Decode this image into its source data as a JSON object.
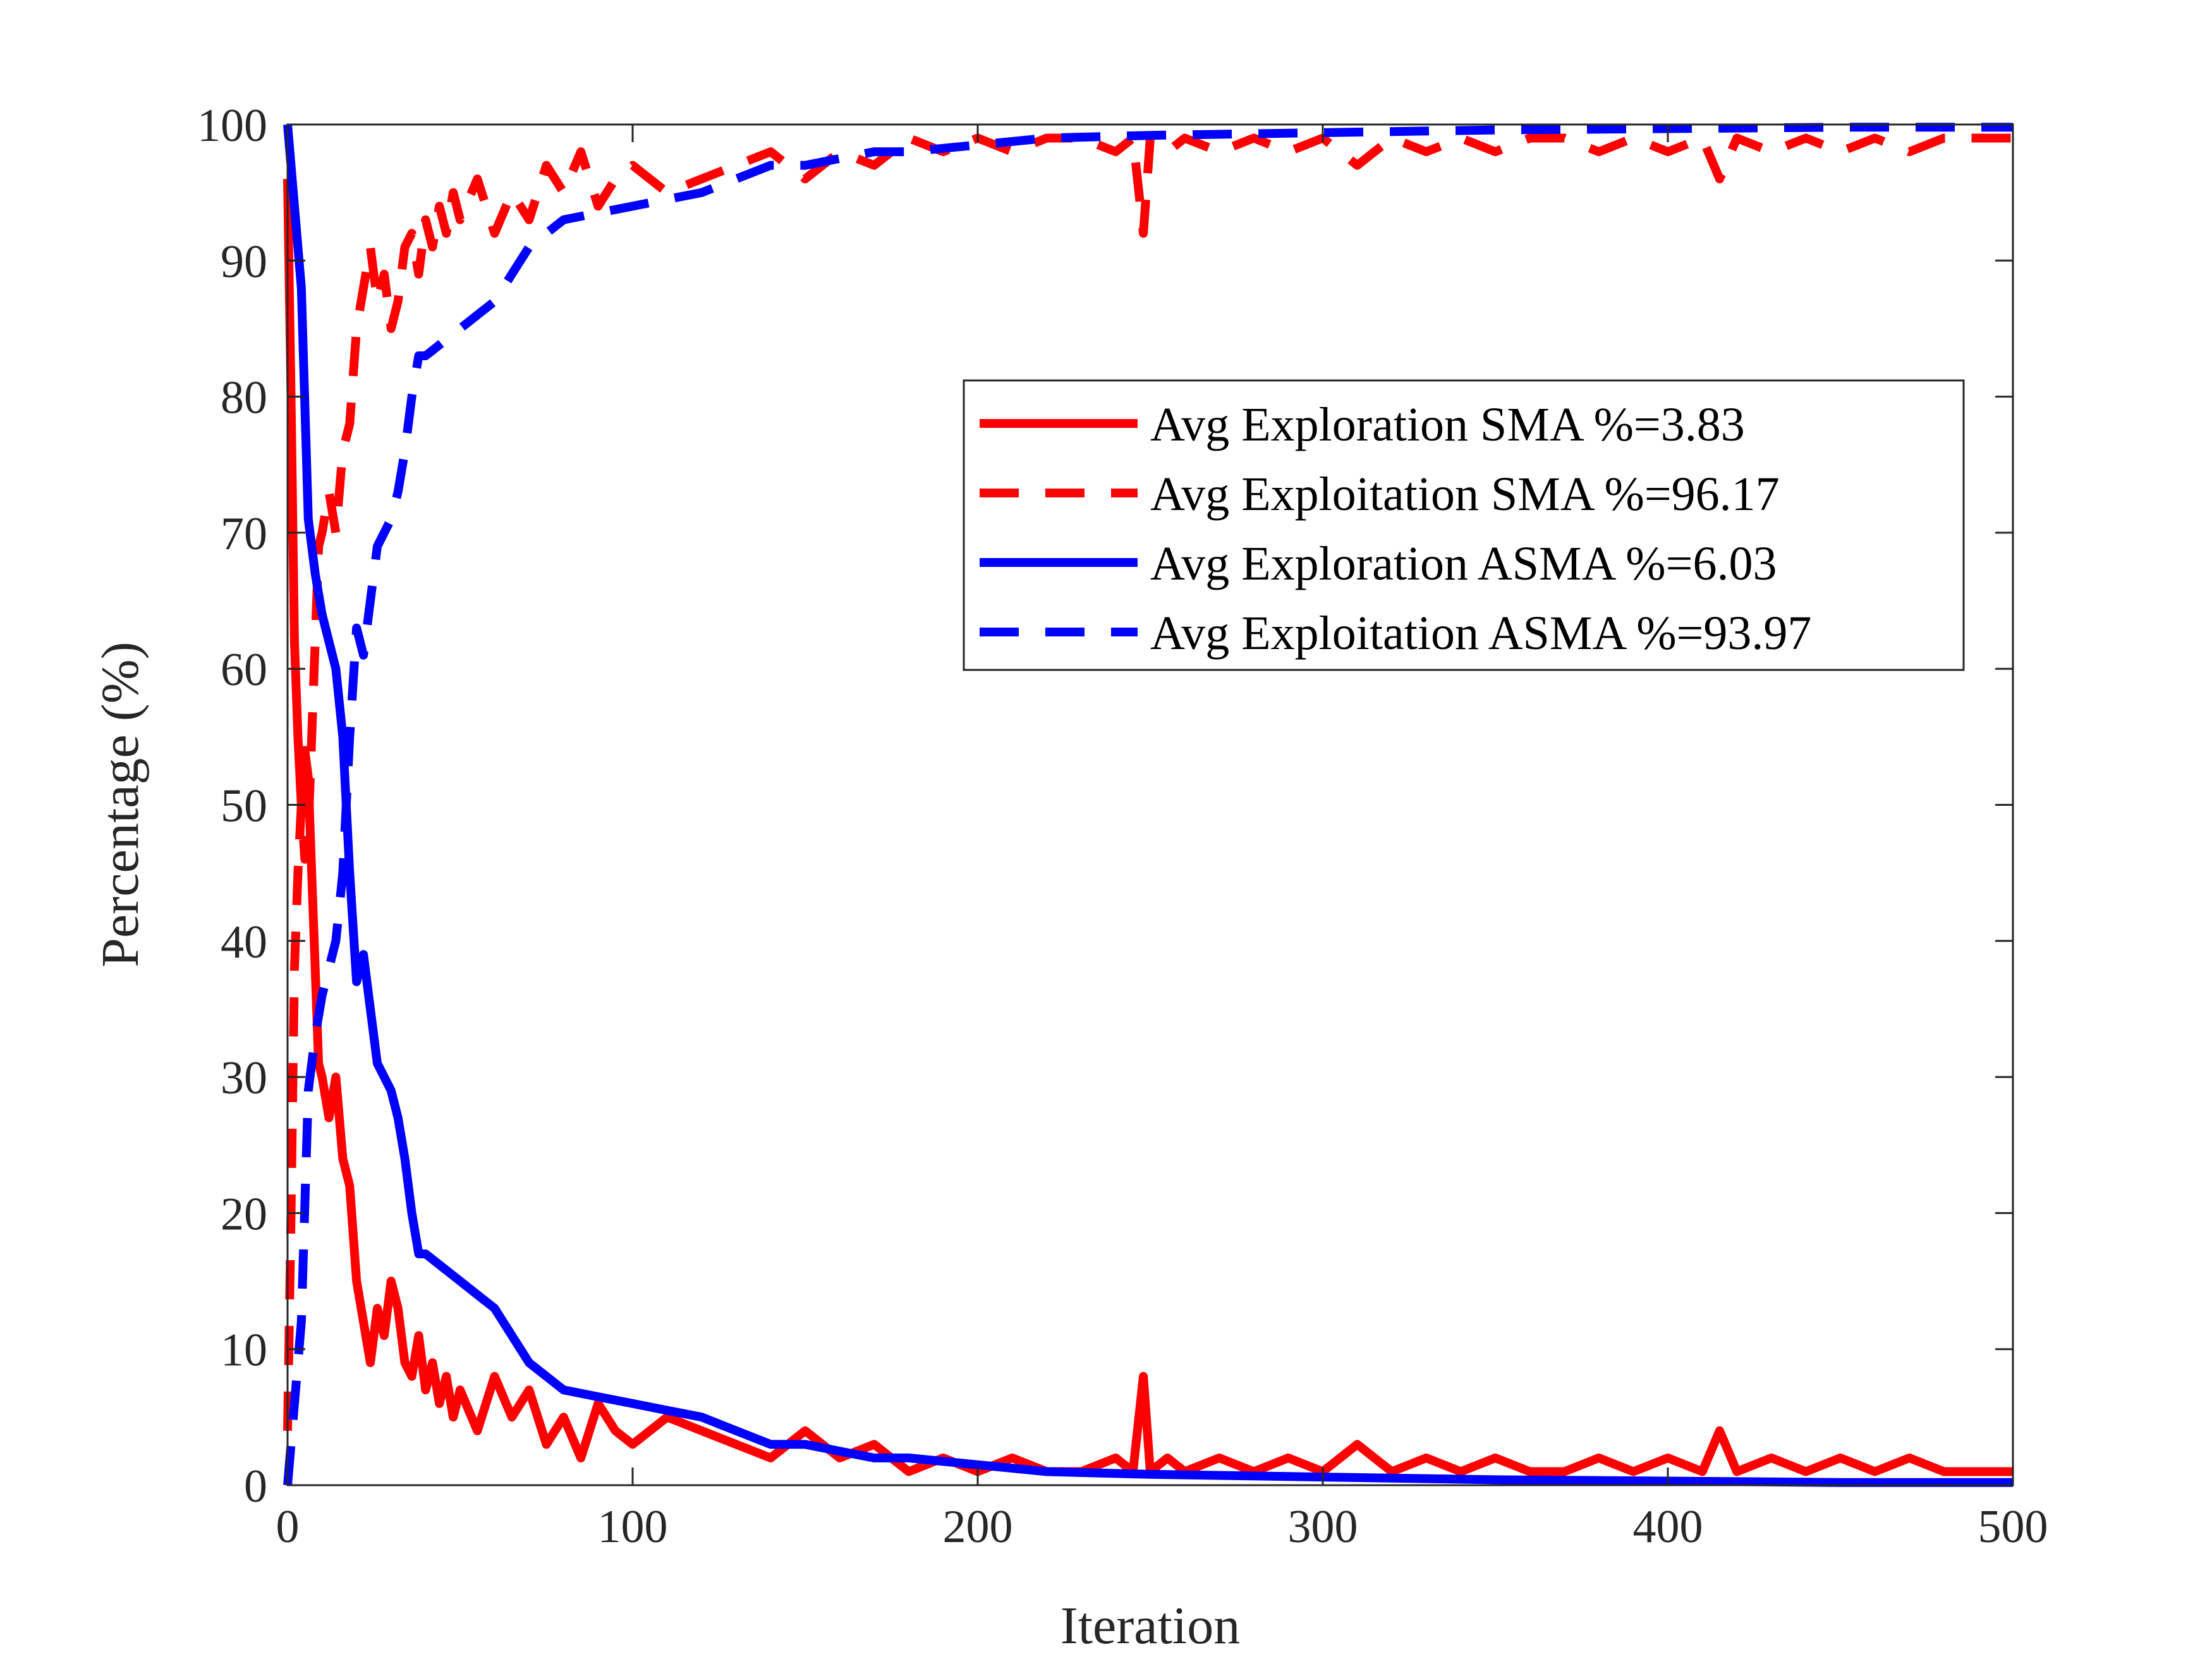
{
  "chart_data": {
    "type": "line",
    "title": "",
    "xlabel": "Iteration",
    "ylabel": "Percentage (%)",
    "xlim": [
      0,
      500
    ],
    "ylim": [
      0,
      100
    ],
    "xticks": [
      "0",
      "100",
      "200",
      "300",
      "400",
      "500"
    ],
    "yticks": [
      "0",
      "10",
      "20",
      "30",
      "40",
      "50",
      "60",
      "70",
      "80",
      "90",
      "100"
    ],
    "grid": false,
    "legend_position": "top-right",
    "series": [
      {
        "name": "Avg Exploration SMA %=3.83",
        "color": "#ff0000",
        "style": "solid",
        "x": [
          0,
          1,
          2,
          3,
          4,
          5,
          6,
          7,
          8,
          9,
          10,
          12,
          14,
          16,
          18,
          20,
          22,
          24,
          26,
          28,
          30,
          32,
          34,
          36,
          38,
          40,
          42,
          44,
          46,
          48,
          50,
          55,
          60,
          65,
          70,
          75,
          80,
          85,
          90,
          95,
          100,
          110,
          120,
          130,
          140,
          150,
          160,
          170,
          180,
          190,
          200,
          210,
          220,
          230,
          240,
          245,
          248,
          250,
          255,
          260,
          270,
          280,
          290,
          300,
          310,
          320,
          330,
          340,
          350,
          360,
          370,
          380,
          390,
          400,
          410,
          415,
          420,
          430,
          440,
          450,
          460,
          470,
          480,
          490,
          500
        ],
        "y": [
          96,
          80,
          62,
          55,
          50,
          54,
          52,
          45,
          38,
          31,
          30,
          27,
          30,
          24,
          22,
          15,
          12,
          9,
          13,
          11,
          15,
          13,
          9,
          8,
          11,
          7,
          9,
          6,
          8,
          5,
          7,
          4,
          8,
          5,
          7,
          3,
          5,
          2,
          6,
          4,
          3,
          5,
          4,
          3,
          2,
          4,
          2,
          3,
          1,
          2,
          1,
          2,
          1,
          1,
          2,
          1,
          8,
          1,
          2,
          1,
          2,
          1,
          2,
          1,
          3,
          1,
          2,
          1,
          2,
          1,
          1,
          2,
          1,
          2,
          1,
          4,
          1,
          2,
          1,
          2,
          1,
          2,
          1,
          1,
          1
        ]
      },
      {
        "name": "Avg Exploitation SMA %=96.17",
        "color": "#ff0000",
        "style": "dashed",
        "x": [
          0,
          1,
          2,
          3,
          4,
          5,
          6,
          7,
          8,
          9,
          10,
          12,
          14,
          16,
          18,
          20,
          22,
          24,
          26,
          28,
          30,
          32,
          34,
          36,
          38,
          40,
          42,
          44,
          46,
          48,
          50,
          55,
          60,
          65,
          70,
          75,
          80,
          85,
          90,
          95,
          100,
          110,
          120,
          130,
          140,
          150,
          160,
          170,
          180,
          190,
          200,
          210,
          220,
          230,
          240,
          245,
          248,
          250,
          255,
          260,
          270,
          280,
          290,
          300,
          310,
          320,
          330,
          340,
          350,
          360,
          370,
          380,
          390,
          400,
          410,
          415,
          420,
          430,
          440,
          450,
          460,
          470,
          480,
          490,
          500
        ],
        "y": [
          4,
          20,
          38,
          45,
          50,
          46,
          48,
          55,
          62,
          69,
          70,
          73,
          70,
          76,
          78,
          85,
          88,
          91,
          87,
          89,
          85,
          87,
          91,
          92,
          89,
          93,
          91,
          94,
          92,
          95,
          93,
          96,
          92,
          95,
          93,
          97,
          95,
          98,
          94,
          96,
          97,
          95,
          96,
          97,
          98,
          96,
          98,
          97,
          99,
          98,
          99,
          98,
          99,
          99,
          98,
          99,
          92,
          99,
          98,
          99,
          98,
          99,
          98,
          99,
          97,
          99,
          98,
          99,
          98,
          99,
          99,
          98,
          99,
          98,
          99,
          96,
          99,
          98,
          99,
          98,
          99,
          98,
          99,
          99,
          99
        ]
      },
      {
        "name": "Avg Exploration ASMA %=6.03",
        "color": "#0000ff",
        "style": "solid",
        "x": [
          0,
          2,
          4,
          6,
          8,
          10,
          12,
          14,
          16,
          18,
          20,
          22,
          24,
          26,
          28,
          30,
          32,
          34,
          36,
          38,
          40,
          45,
          50,
          55,
          60,
          65,
          70,
          75,
          80,
          90,
          100,
          110,
          120,
          130,
          140,
          150,
          160,
          170,
          180,
          200,
          220,
          250,
          300,
          350,
          400,
          450,
          500
        ],
        "y": [
          100,
          94,
          88,
          71,
          67,
          64,
          62,
          60,
          55,
          45,
          37,
          39,
          35,
          31,
          30,
          29,
          27,
          24,
          20,
          17,
          17,
          16,
          15,
          14,
          13,
          11,
          9,
          8,
          7,
          6.5,
          6,
          5.5,
          5,
          4,
          3,
          3,
          2.5,
          2,
          2,
          1.5,
          1,
          0.8,
          0.6,
          0.4,
          0.3,
          0.2,
          0.2
        ]
      },
      {
        "name": "Avg Exploitation ASMA %=93.97",
        "color": "#0000ff",
        "style": "dashed",
        "x": [
          0,
          2,
          4,
          6,
          8,
          10,
          12,
          14,
          16,
          18,
          20,
          22,
          24,
          26,
          28,
          30,
          32,
          34,
          36,
          38,
          40,
          45,
          50,
          55,
          60,
          65,
          70,
          75,
          80,
          90,
          100,
          110,
          120,
          130,
          140,
          150,
          160,
          170,
          180,
          200,
          220,
          250,
          300,
          350,
          400,
          450,
          500
        ],
        "y": [
          0,
          6,
          12,
          29,
          33,
          36,
          38,
          40,
          45,
          55,
          63,
          61,
          65,
          69,
          70,
          71,
          73,
          76,
          80,
          83,
          83,
          84,
          85,
          86,
          87,
          89,
          91,
          92,
          93,
          93.5,
          94,
          94.5,
          95,
          96,
          97,
          97,
          97.5,
          98,
          98,
          98.5,
          99,
          99.2,
          99.4,
          99.6,
          99.7,
          99.8,
          99.8
        ]
      }
    ]
  }
}
